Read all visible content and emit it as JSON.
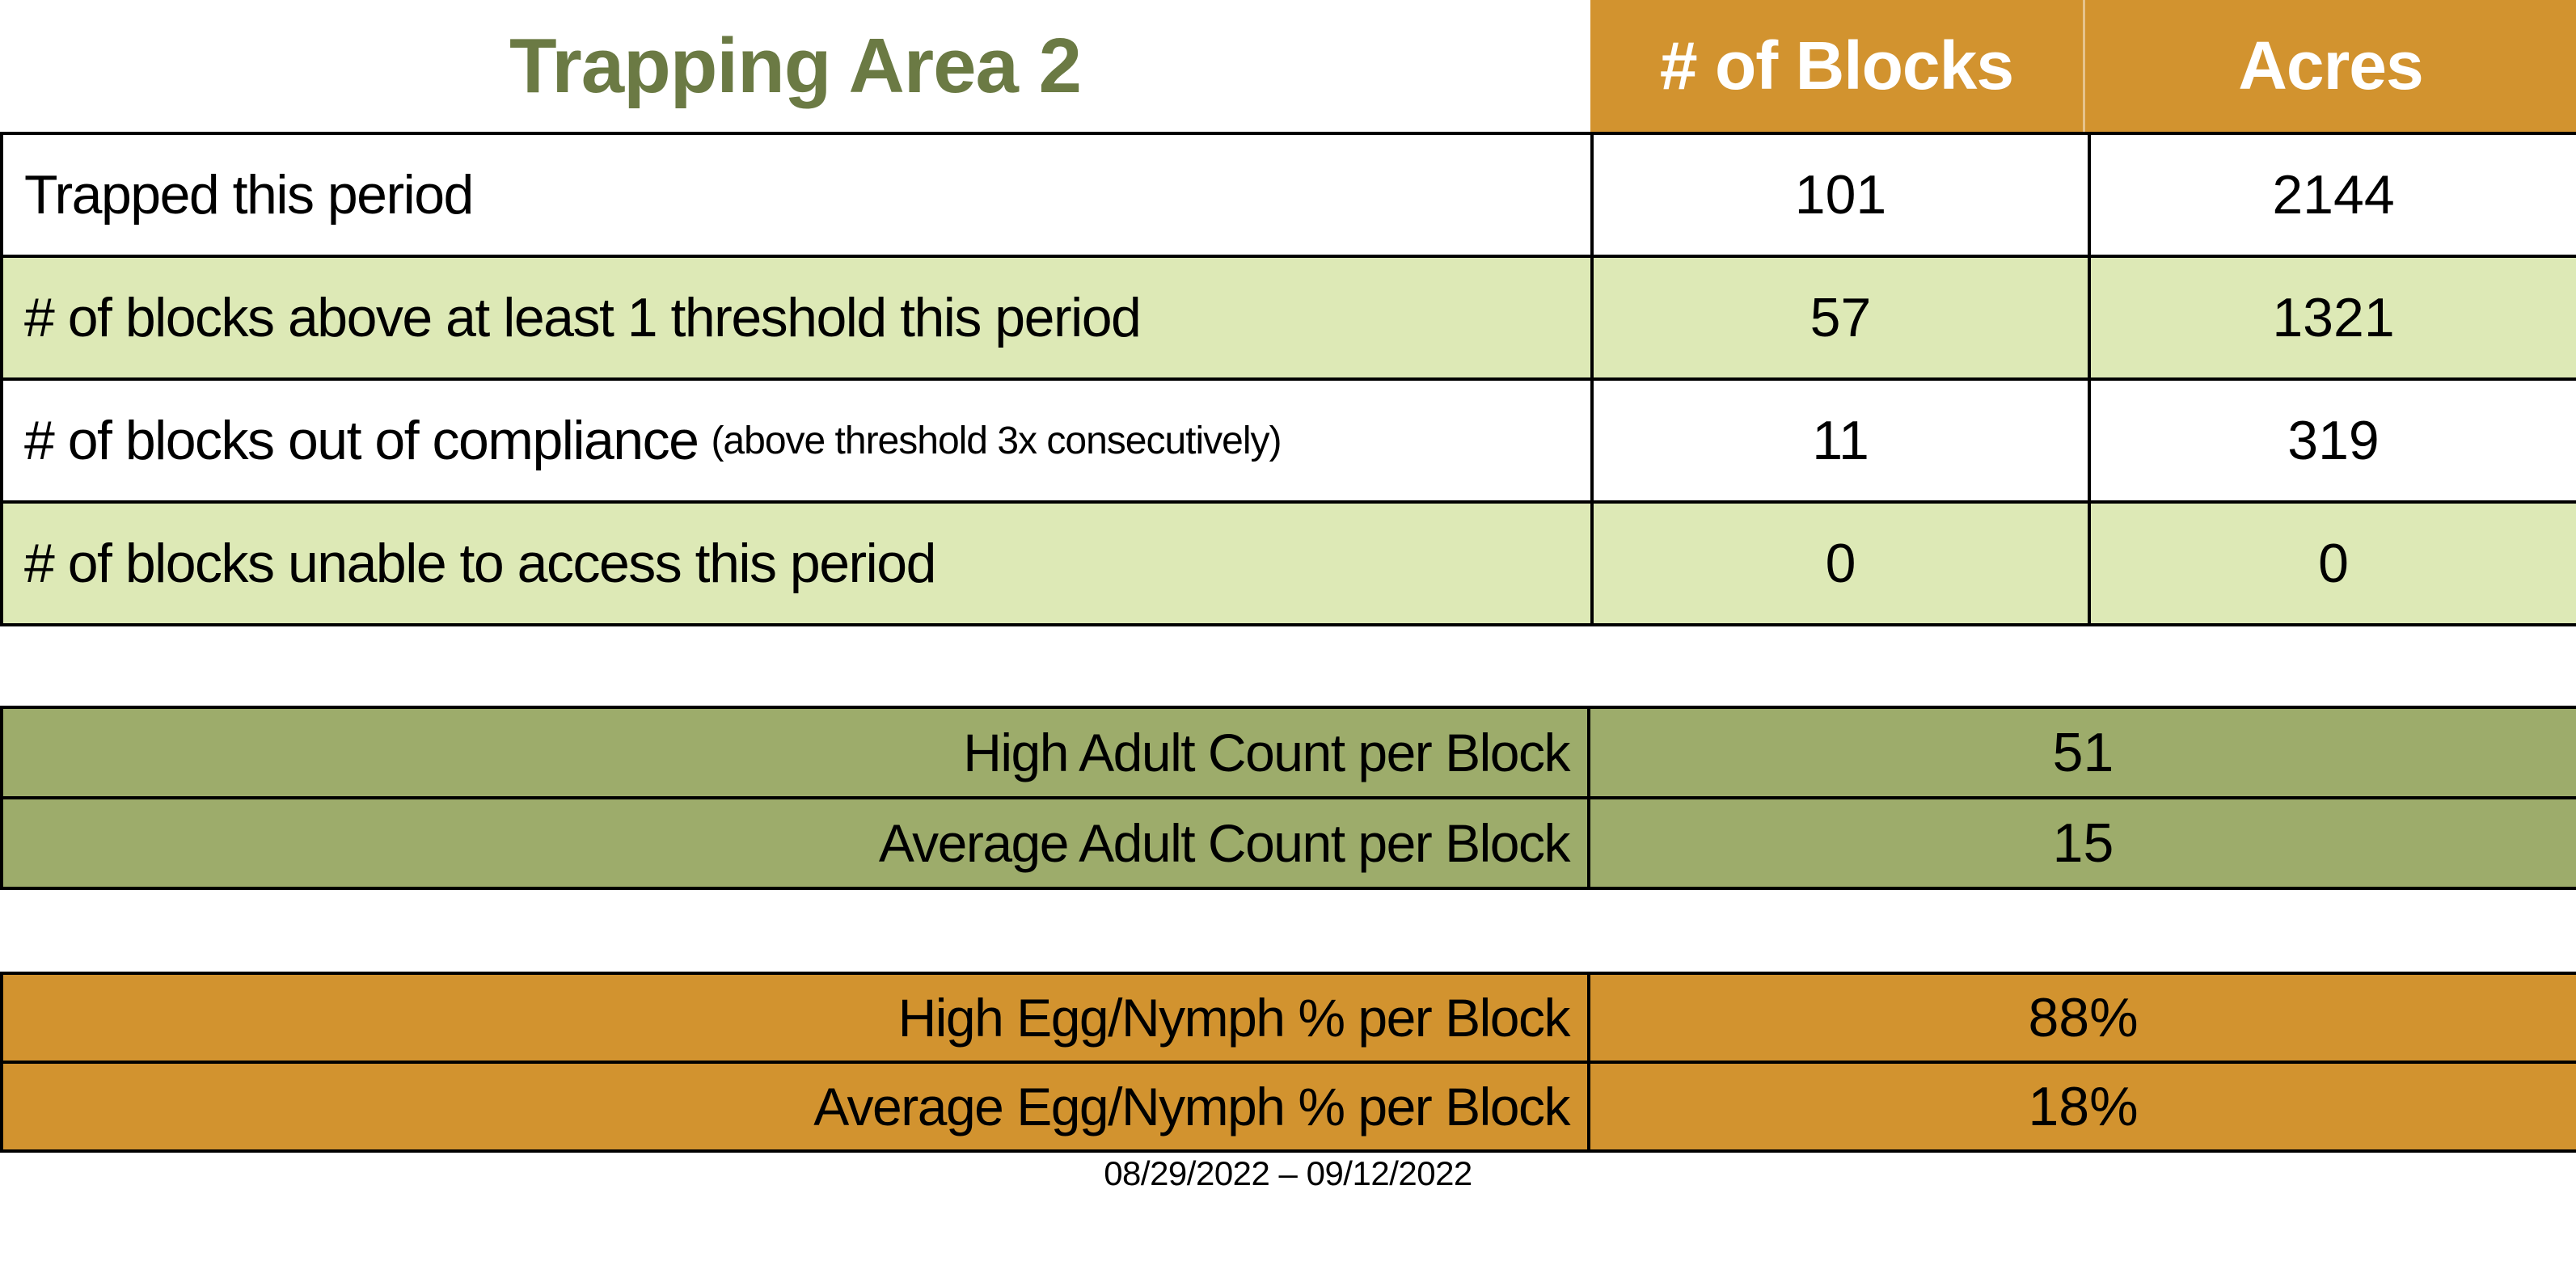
{
  "title": "Trapping Area 2",
  "colors": {
    "orange": "#D2932F",
    "light_green": "#DDE9B6",
    "olive": "#9DAC6B",
    "title_green": "#6B7A44",
    "white": "#FFFFFF"
  },
  "header": {
    "columns": [
      "# of Blocks",
      "Acres"
    ]
  },
  "table": {
    "rows": [
      {
        "label": "Trapped this period",
        "note": "",
        "blocks": "101",
        "acres": "2144"
      },
      {
        "label": "# of blocks above at least 1 threshold this period",
        "note": "",
        "blocks": "57",
        "acres": "1321"
      },
      {
        "label": "# of blocks out of compliance",
        "note": "(above threshold 3x consecutively)",
        "blocks": "11",
        "acres": "319"
      },
      {
        "label": "# of blocks unable to access this period",
        "note": "",
        "blocks": "0",
        "acres": "0"
      }
    ]
  },
  "adult_section": {
    "rows": [
      {
        "label": "High Adult Count per Block",
        "value": "51"
      },
      {
        "label": "Average Adult Count per Block",
        "value": "15"
      }
    ]
  },
  "egg_section": {
    "rows": [
      {
        "label": "High Egg/Nymph % per Block",
        "value": "88%"
      },
      {
        "label": "Average Egg/Nymph % per Block",
        "value": "18%"
      }
    ]
  },
  "footer": {
    "date_range": "08/29/2022 – 09/12/2022"
  },
  "chart_data": {
    "type": "table",
    "title": "Trapping Area 2",
    "columns": [
      "",
      "# of Blocks",
      "Acres"
    ],
    "rows": [
      [
        "Trapped this period",
        101,
        2144
      ],
      [
        "# of blocks above at least 1 threshold this period",
        57,
        1321
      ],
      [
        "# of blocks out of compliance (above threshold 3x consecutively)",
        11,
        319
      ],
      [
        "# of blocks unable to access this period",
        0,
        0
      ]
    ],
    "summary_tables": [
      {
        "rows": [
          [
            "High Adult Count per Block",
            51
          ],
          [
            "Average Adult Count per Block",
            15
          ]
        ]
      },
      {
        "rows": [
          [
            "High Egg/Nymph % per Block",
            "88%"
          ],
          [
            "Average Egg/Nymph % per Block",
            "18%"
          ]
        ]
      }
    ],
    "period": "08/29/2022 – 09/12/2022"
  }
}
